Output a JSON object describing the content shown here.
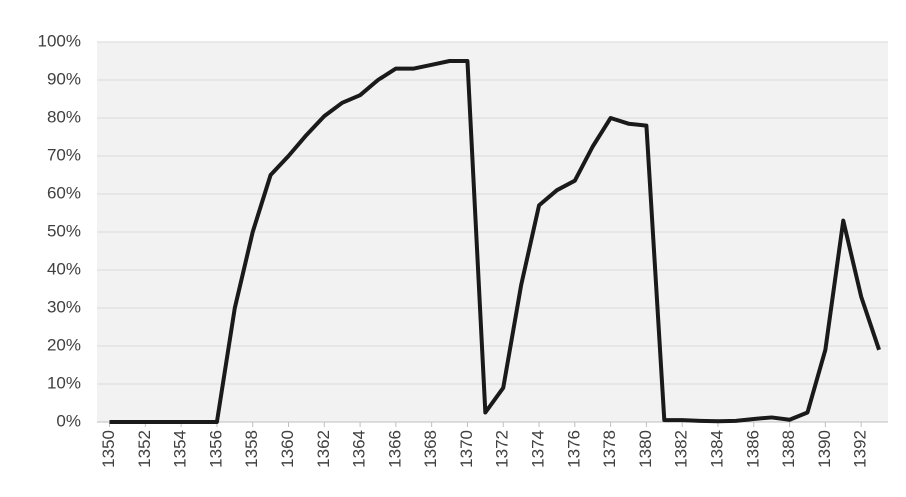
{
  "chart_data": {
    "type": "line",
    "x": [
      1350,
      1351,
      1352,
      1353,
      1354,
      1355,
      1356,
      1357,
      1358,
      1359,
      1360,
      1361,
      1362,
      1363,
      1364,
      1365,
      1366,
      1367,
      1368,
      1369,
      1370,
      1371,
      1372,
      1373,
      1374,
      1375,
      1376,
      1377,
      1378,
      1379,
      1380,
      1381,
      1382,
      1383,
      1384,
      1385,
      1386,
      1387,
      1388,
      1389,
      1390,
      1391,
      1392,
      1393
    ],
    "series": [
      {
        "color": "#1a1a1a",
        "values": [
          0,
          0,
          0,
          0,
          0,
          0,
          0,
          30,
          50,
          65,
          70,
          75.5,
          80.5,
          84,
          86,
          90,
          93,
          93,
          94,
          95,
          95,
          2.5,
          9,
          36,
          57,
          61,
          63.5,
          72.5,
          80,
          78.5,
          78,
          0.5,
          0.5,
          0.3,
          0.2,
          0.3,
          0.8,
          1.2,
          0.6,
          2.5,
          19,
          53,
          33,
          19
        ]
      }
    ],
    "xlim": [
      1349.3,
      1393.5
    ],
    "xticks": [
      1350,
      1352,
      1354,
      1356,
      1358,
      1360,
      1362,
      1364,
      1366,
      1368,
      1370,
      1372,
      1374,
      1376,
      1378,
      1380,
      1382,
      1384,
      1386,
      1388,
      1390,
      1392
    ],
    "ylim": [
      0,
      100
    ],
    "yticks": [
      {
        "value": 0,
        "label": "0%"
      },
      {
        "value": 10,
        "label": "10%"
      },
      {
        "value": 20,
        "label": "20%"
      },
      {
        "value": 30,
        "label": "30%"
      },
      {
        "value": 40,
        "label": "40%"
      },
      {
        "value": 50,
        "label": "50%"
      },
      {
        "value": 60,
        "label": "60%"
      },
      {
        "value": 70,
        "label": "70%"
      },
      {
        "value": 80,
        "label": "80%"
      },
      {
        "value": 90,
        "label": "90%"
      },
      {
        "value": 100,
        "label": "100%"
      }
    ],
    "grid": true
  }
}
